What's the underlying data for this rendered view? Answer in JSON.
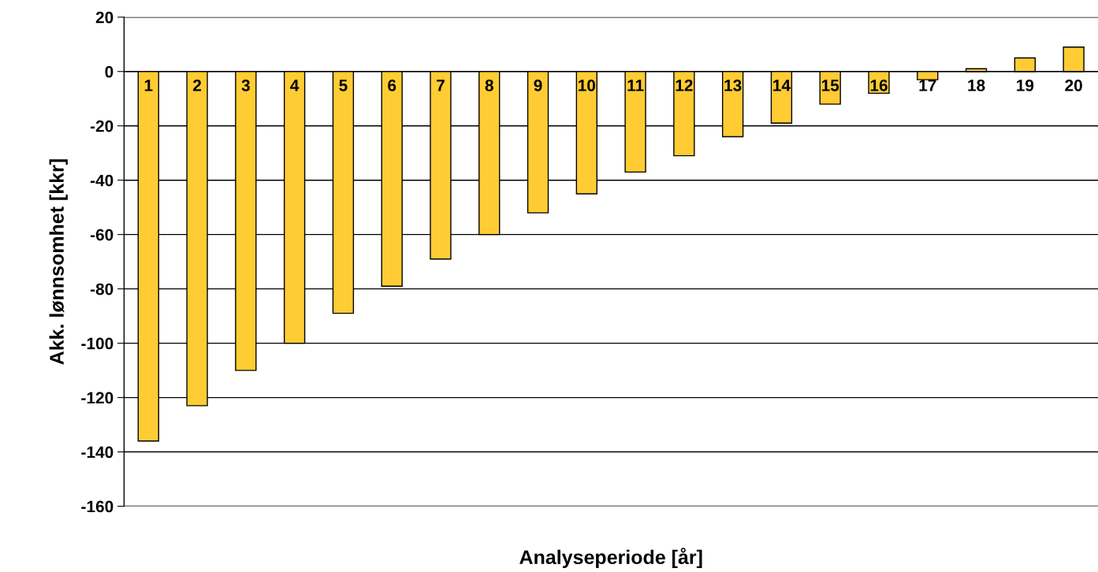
{
  "chart_data": {
    "type": "bar",
    "xlabel": "Analyseperiode [år]",
    "ylabel": "Akk. lønnsomhet [kkr]",
    "categories": [
      "1",
      "2",
      "3",
      "4",
      "5",
      "6",
      "7",
      "8",
      "9",
      "10",
      "11",
      "12",
      "13",
      "14",
      "15",
      "16",
      "17",
      "18",
      "19",
      "20"
    ],
    "values": [
      -136,
      -123,
      -110,
      -100,
      -89,
      -79,
      -69,
      -60,
      -52,
      -45,
      -37,
      -31,
      -24,
      -19,
      -12,
      -8,
      -3,
      1,
      5,
      9
    ],
    "color": "#ffcc33",
    "ylim": [
      -160,
      20
    ],
    "yticks": [
      -160,
      -140,
      -120,
      -100,
      -80,
      -60,
      -40,
      -20,
      0,
      20
    ],
    "grid": "y"
  }
}
